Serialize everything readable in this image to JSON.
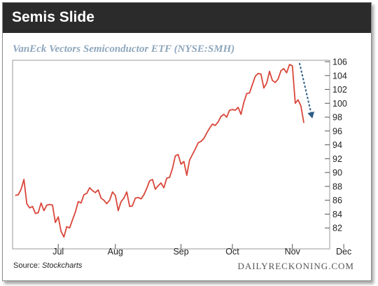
{
  "header": {
    "title": "Semis Slide"
  },
  "footer": {
    "source_prefix": "Source: ",
    "source_name": "Stockcharts",
    "brand": "DAILYRECKONING.COM"
  },
  "colors": {
    "line": "#d9463a",
    "arrow": "#2d5d86",
    "header_bg": "#2b2b2b",
    "subtitle": "#8ea6bc"
  },
  "chart_data": {
    "type": "line",
    "title": "VanEck Vectors Semiconductor ETF (NYSE:SMH)",
    "xlabel": "",
    "ylabel": "",
    "grid": false,
    "ylim": [
      80,
      106
    ],
    "yticks": [
      82,
      84,
      86,
      88,
      90,
      92,
      94,
      96,
      98,
      100,
      102,
      104,
      106
    ],
    "xticks": [
      {
        "label": "Jul",
        "x": 15
      },
      {
        "label": "Aug",
        "x": 35
      },
      {
        "label": "Sep",
        "x": 58
      },
      {
        "label": "Oct",
        "x": 76
      },
      {
        "label": "Nov",
        "x": 97
      },
      {
        "label": "Dec",
        "x": 115
      }
    ],
    "series": [
      {
        "values": [
          [
            0,
            86.7
          ],
          [
            1,
            86.8
          ],
          [
            2,
            87.6
          ],
          [
            3,
            89.0
          ],
          [
            4,
            85.5
          ],
          [
            5,
            84.9
          ],
          [
            6,
            85.1
          ],
          [
            7,
            84.1
          ],
          [
            8,
            84.2
          ],
          [
            9,
            85.6
          ],
          [
            10,
            84.5
          ],
          [
            11,
            85.3
          ],
          [
            12,
            85.4
          ],
          [
            13,
            85.3
          ],
          [
            14,
            82.8
          ],
          [
            15,
            83.6
          ],
          [
            16,
            81.5
          ],
          [
            17,
            80.7
          ],
          [
            18,
            82.2
          ],
          [
            19,
            82.0
          ],
          [
            20,
            83.2
          ],
          [
            21,
            84.3
          ],
          [
            22,
            85.8
          ],
          [
            23,
            85.6
          ],
          [
            24,
            86.8
          ],
          [
            25,
            87.0
          ],
          [
            26,
            87.8
          ],
          [
            27,
            87.4
          ],
          [
            28,
            87.1
          ],
          [
            29,
            87.5
          ],
          [
            30,
            86.3
          ],
          [
            31,
            86.0
          ],
          [
            32,
            85.5
          ],
          [
            33,
            86.0
          ],
          [
            34,
            87.2
          ],
          [
            35,
            86.7
          ],
          [
            36,
            84.5
          ],
          [
            37,
            85.8
          ],
          [
            38,
            86.3
          ],
          [
            39,
            87.2
          ],
          [
            40,
            85.1
          ],
          [
            41,
            85.2
          ],
          [
            42,
            86.3
          ],
          [
            43,
            86.4
          ],
          [
            44,
            86.2
          ],
          [
            45,
            86.8
          ],
          [
            46,
            87.7
          ],
          [
            47,
            88.8
          ],
          [
            48,
            89.0
          ],
          [
            49,
            87.6
          ],
          [
            50,
            88.1
          ],
          [
            51,
            88.5
          ],
          [
            52,
            87.8
          ],
          [
            53,
            89.2
          ],
          [
            54,
            89.3
          ],
          [
            55,
            90.6
          ],
          [
            56,
            92.4
          ],
          [
            57,
            92.6
          ],
          [
            58,
            91.2
          ],
          [
            59,
            91.6
          ],
          [
            60,
            89.6
          ],
          [
            61,
            91.8
          ],
          [
            62,
            92.6
          ],
          [
            63,
            93.4
          ],
          [
            64,
            94.3
          ],
          [
            65,
            94.5
          ],
          [
            66,
            94.9
          ],
          [
            67,
            95.7
          ],
          [
            68,
            96.4
          ],
          [
            69,
            97.0
          ],
          [
            70,
            96.8
          ],
          [
            71,
            97.3
          ],
          [
            72,
            98.1
          ],
          [
            73,
            98.4
          ],
          [
            74,
            98.0
          ],
          [
            75,
            99.0
          ],
          [
            76,
            99.1
          ],
          [
            77,
            99.0
          ],
          [
            78,
            99.4
          ],
          [
            79,
            98.4
          ],
          [
            80,
            100.1
          ],
          [
            81,
            101.4
          ],
          [
            82,
            101.5
          ],
          [
            83,
            102.7
          ],
          [
            84,
            103.9
          ],
          [
            85,
            104.3
          ],
          [
            86,
            104.2
          ],
          [
            87,
            102.2
          ],
          [
            88,
            102.9
          ],
          [
            89,
            104.6
          ],
          [
            90,
            103.3
          ],
          [
            91,
            103.0
          ],
          [
            92,
            103.5
          ],
          [
            93,
            104.7
          ],
          [
            94,
            105.0
          ],
          [
            95,
            104.4
          ],
          [
            96,
            105.6
          ],
          [
            97,
            105.4
          ],
          [
            98,
            100.0
          ],
          [
            99,
            100.5
          ],
          [
            100,
            99.6
          ],
          [
            101,
            97.2
          ]
        ]
      }
    ],
    "annotations": [
      {
        "type": "arrow",
        "style": "dashed",
        "from": [
          99.5,
          105.8
        ],
        "to": [
          104,
          97.8
        ]
      }
    ]
  }
}
